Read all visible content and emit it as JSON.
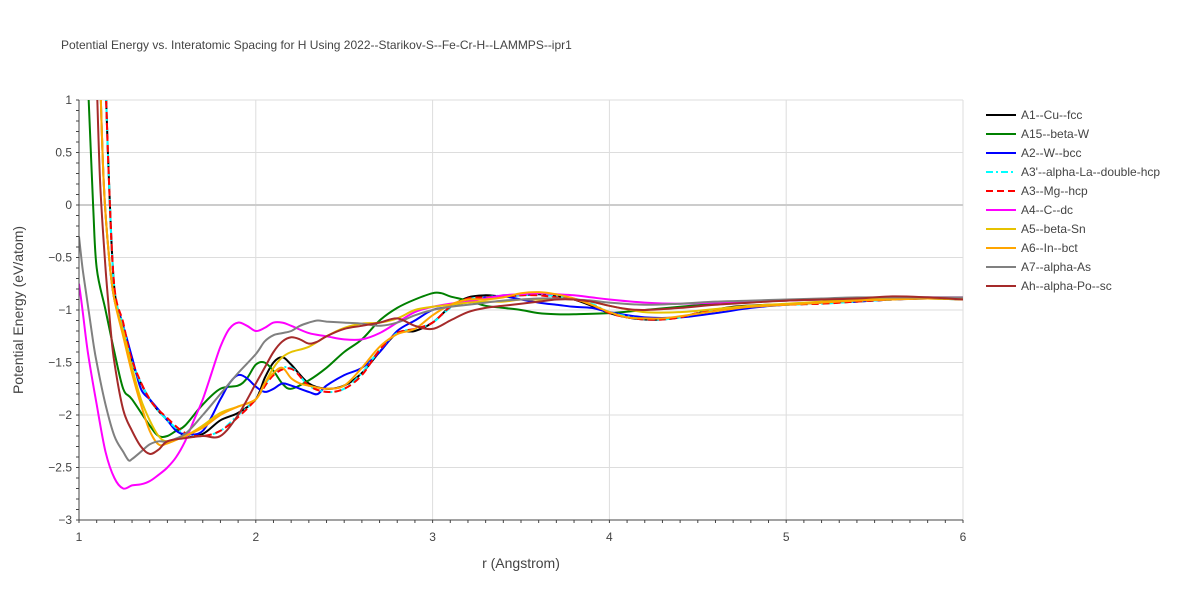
{
  "chart_data": {
    "type": "line",
    "title": "Potential Energy vs. Interatomic Spacing for H Using 2022--Starikov-S--Fe-Cr-H--LAMMPS--ipr1",
    "xlabel": "r (Angstrom)",
    "ylabel": "Potential Energy (eV/atom)",
    "xlim": [
      1,
      6
    ],
    "ylim": [
      -3,
      1
    ],
    "xticks": [
      1,
      2,
      3,
      4,
      5,
      6
    ],
    "yticks": [
      -3,
      -2.5,
      -2,
      -1.5,
      -1,
      -0.5,
      0,
      0.5,
      1
    ],
    "ytick_labels": [
      "−3",
      "−2.5",
      "−2",
      "−1.5",
      "−1",
      "−0.5",
      "0",
      "0.5",
      "1"
    ],
    "grid": true,
    "legend_position": "top-right outside",
    "series": [
      {
        "name": "A1--Cu--fcc",
        "color": "#000000",
        "dash": "solid",
        "x": [
          1.15,
          1.17,
          1.2,
          1.25,
          1.3,
          1.4,
          1.5,
          1.6,
          1.7,
          1.8,
          1.9,
          2.0,
          2.05,
          2.1,
          2.15,
          2.2,
          2.3,
          2.4,
          2.5,
          2.6,
          2.7,
          2.8,
          2.9,
          3.0,
          3.1,
          3.2,
          3.3,
          3.4,
          3.5,
          3.6,
          3.7,
          3.8,
          3.9,
          4.0,
          4.1,
          4.2,
          4.3,
          4.4,
          4.5,
          4.7,
          4.9,
          5.0,
          5.2,
          5.4,
          5.6,
          5.8,
          6.0
        ],
        "y": [
          1.2,
          0.2,
          -0.8,
          -1.15,
          -1.5,
          -1.85,
          -2.05,
          -2.2,
          -2.18,
          -2.05,
          -1.98,
          -1.85,
          -1.65,
          -1.5,
          -1.45,
          -1.52,
          -1.7,
          -1.75,
          -1.72,
          -1.6,
          -1.4,
          -1.22,
          -1.2,
          -1.12,
          -0.97,
          -0.88,
          -0.86,
          -0.87,
          -0.86,
          -0.85,
          -0.87,
          -0.9,
          -0.96,
          -1.03,
          -1.07,
          -1.09,
          -1.09,
          -1.07,
          -1.03,
          -0.97,
          -0.95,
          -0.95,
          -0.93,
          -0.92,
          -0.9,
          -0.89,
          -0.9
        ]
      },
      {
        "name": "A15--beta-W",
        "color": "#008000",
        "dash": "solid",
        "x": [
          1.05,
          1.08,
          1.1,
          1.15,
          1.2,
          1.25,
          1.3,
          1.4,
          1.45,
          1.5,
          1.55,
          1.6,
          1.7,
          1.8,
          1.9,
          1.95,
          2.0,
          2.05,
          2.1,
          2.15,
          2.2,
          2.3,
          2.4,
          2.5,
          2.6,
          2.7,
          2.8,
          2.9,
          3.0,
          3.05,
          3.1,
          3.2,
          3.3,
          3.4,
          3.5,
          3.6,
          3.7,
          3.8,
          4.0,
          4.2,
          4.4,
          4.6,
          4.8,
          5.0,
          5.2,
          5.4,
          5.6,
          5.8,
          6.0
        ],
        "y": [
          1.2,
          0.0,
          -0.6,
          -1.0,
          -1.4,
          -1.75,
          -1.85,
          -2.1,
          -2.2,
          -2.2,
          -2.15,
          -2.1,
          -1.9,
          -1.75,
          -1.72,
          -1.65,
          -1.52,
          -1.5,
          -1.58,
          -1.7,
          -1.75,
          -1.67,
          -1.55,
          -1.4,
          -1.28,
          -1.1,
          -0.98,
          -0.9,
          -0.84,
          -0.84,
          -0.87,
          -0.91,
          -0.96,
          -0.98,
          -1.0,
          -1.03,
          -1.04,
          -1.04,
          -1.03,
          -1.0,
          -0.97,
          -0.94,
          -0.92,
          -0.91,
          -0.9,
          -0.89,
          -0.88,
          -0.88,
          -0.89
        ]
      },
      {
        "name": "A2--W--bcc",
        "color": "#0000ff",
        "dash": "solid",
        "x": [
          1.12,
          1.14,
          1.17,
          1.2,
          1.25,
          1.3,
          1.35,
          1.4,
          1.45,
          1.5,
          1.55,
          1.6,
          1.7,
          1.8,
          1.85,
          1.9,
          1.95,
          2.0,
          2.05,
          2.1,
          2.15,
          2.2,
          2.3,
          2.35,
          2.4,
          2.5,
          2.6,
          2.7,
          2.8,
          2.9,
          3.0,
          3.1,
          3.2,
          3.3,
          3.4,
          3.5,
          3.6,
          3.7,
          3.8,
          3.9,
          4.0,
          4.2,
          4.4,
          4.6,
          4.8,
          5.0,
          5.2,
          5.4,
          5.6,
          5.8,
          6.0
        ],
        "y": [
          1.2,
          0.2,
          -0.5,
          -0.9,
          -1.15,
          -1.45,
          -1.75,
          -1.85,
          -1.95,
          -2.05,
          -2.15,
          -2.18,
          -2.15,
          -1.85,
          -1.7,
          -1.62,
          -1.65,
          -1.73,
          -1.78,
          -1.75,
          -1.7,
          -1.72,
          -1.78,
          -1.8,
          -1.72,
          -1.62,
          -1.55,
          -1.4,
          -1.2,
          -1.1,
          -1.0,
          -0.97,
          -0.92,
          -0.88,
          -0.87,
          -0.9,
          -0.93,
          -0.95,
          -0.97,
          -0.98,
          -1.02,
          -1.07,
          -1.07,
          -1.03,
          -0.98,
          -0.95,
          -0.93,
          -0.92,
          -0.9,
          -0.89,
          -0.89
        ]
      },
      {
        "name": "A3'--alpha-La--double-hcp",
        "color": "#00ffff",
        "dash": "dashdot",
        "x": [
          1.15,
          1.17,
          1.2,
          1.25,
          1.3,
          1.4,
          1.5,
          1.6,
          1.7,
          1.8,
          1.9,
          2.0,
          2.1,
          2.2,
          2.3,
          2.4,
          2.5,
          2.6,
          2.7,
          2.8,
          2.9,
          3.0,
          3.1,
          3.2,
          3.3,
          3.4,
          3.5,
          3.6,
          3.7,
          3.8,
          3.9,
          4.0,
          4.1,
          4.2,
          4.3,
          4.4,
          4.5,
          4.7,
          4.9,
          5.0,
          5.2,
          5.4,
          5.6,
          5.8,
          6.0
        ],
        "y": [
          1.2,
          0.2,
          -0.8,
          -1.15,
          -1.5,
          -1.85,
          -2.05,
          -2.18,
          -2.2,
          -2.15,
          -2.0,
          -1.85,
          -1.6,
          -1.55,
          -1.72,
          -1.78,
          -1.75,
          -1.6,
          -1.38,
          -1.22,
          -1.18,
          -1.12,
          -0.98,
          -0.9,
          -0.88,
          -0.86,
          -0.86,
          -0.85,
          -0.87,
          -0.89,
          -0.94,
          -1.02,
          -1.06,
          -1.09,
          -1.09,
          -1.07,
          -1.03,
          -0.98,
          -0.96,
          -0.95,
          -0.94,
          -0.92,
          -0.9,
          -0.89,
          -0.9
        ]
      },
      {
        "name": "A3--Mg--hcp",
        "color": "#ff0000",
        "dash": "dash",
        "x": [
          1.15,
          1.17,
          1.2,
          1.25,
          1.3,
          1.4,
          1.5,
          1.6,
          1.7,
          1.8,
          1.9,
          2.0,
          2.1,
          2.2,
          2.3,
          2.4,
          2.5,
          2.6,
          2.7,
          2.8,
          2.9,
          3.0,
          3.1,
          3.2,
          3.3,
          3.4,
          3.5,
          3.6,
          3.7,
          3.8,
          3.9,
          4.0,
          4.1,
          4.2,
          4.3,
          4.4,
          4.5,
          4.7,
          4.9,
          5.0,
          5.2,
          5.4,
          5.6,
          5.8,
          6.0
        ],
        "y": [
          1.2,
          0.2,
          -0.78,
          -1.12,
          -1.48,
          -1.85,
          -2.03,
          -2.17,
          -2.2,
          -2.15,
          -2.02,
          -1.85,
          -1.62,
          -1.56,
          -1.72,
          -1.78,
          -1.75,
          -1.62,
          -1.38,
          -1.22,
          -1.18,
          -1.12,
          -0.97,
          -0.89,
          -0.88,
          -0.87,
          -0.86,
          -0.86,
          -0.88,
          -0.9,
          -0.95,
          -1.03,
          -1.07,
          -1.09,
          -1.09,
          -1.07,
          -1.03,
          -0.98,
          -0.96,
          -0.95,
          -0.94,
          -0.92,
          -0.9,
          -0.89,
          -0.9
        ]
      },
      {
        "name": "A4--C--dc",
        "color": "#ff00ff",
        "dash": "solid",
        "x": [
          1.0,
          1.02,
          1.05,
          1.1,
          1.15,
          1.2,
          1.25,
          1.3,
          1.35,
          1.4,
          1.45,
          1.5,
          1.55,
          1.6,
          1.65,
          1.7,
          1.75,
          1.8,
          1.85,
          1.9,
          1.95,
          2.0,
          2.05,
          2.1,
          2.15,
          2.2,
          2.3,
          2.4,
          2.5,
          2.6,
          2.7,
          2.8,
          2.9,
          3.0,
          3.1,
          3.2,
          3.3,
          3.4,
          3.5,
          3.6,
          3.7,
          3.8,
          3.9,
          4.0,
          4.2,
          4.4,
          4.6,
          4.8,
          5.0,
          5.2,
          5.4,
          5.6,
          5.8,
          6.0
        ],
        "y": [
          -0.75,
          -1.0,
          -1.4,
          -1.9,
          -2.35,
          -2.6,
          -2.7,
          -2.67,
          -2.66,
          -2.63,
          -2.57,
          -2.5,
          -2.4,
          -2.25,
          -2.05,
          -1.85,
          -1.6,
          -1.35,
          -1.18,
          -1.12,
          -1.15,
          -1.2,
          -1.17,
          -1.12,
          -1.12,
          -1.15,
          -1.22,
          -1.25,
          -1.28,
          -1.28,
          -1.22,
          -1.12,
          -1.02,
          -0.97,
          -0.94,
          -0.92,
          -0.89,
          -0.86,
          -0.85,
          -0.84,
          -0.85,
          -0.86,
          -0.88,
          -0.9,
          -0.93,
          -0.94,
          -0.93,
          -0.92,
          -0.91,
          -0.9,
          -0.89,
          -0.88,
          -0.88,
          -0.88
        ]
      },
      {
        "name": "A5--beta-Sn",
        "color": "#e6c200",
        "dash": "solid",
        "x": [
          1.12,
          1.14,
          1.17,
          1.2,
          1.25,
          1.3,
          1.35,
          1.4,
          1.45,
          1.5,
          1.6,
          1.7,
          1.8,
          1.9,
          2.0,
          2.05,
          2.1,
          2.15,
          2.2,
          2.3,
          2.4,
          2.5,
          2.6,
          2.7,
          2.8,
          2.9,
          3.0,
          3.1,
          3.2,
          3.3,
          3.4,
          3.5,
          3.6,
          3.7,
          3.8,
          3.9,
          4.0,
          4.2,
          4.4,
          4.6,
          4.8,
          5.0,
          5.2,
          5.4,
          5.6,
          5.8,
          6.0
        ],
        "y": [
          1.2,
          0.2,
          -0.5,
          -0.9,
          -1.2,
          -1.55,
          -1.85,
          -2.05,
          -2.2,
          -2.25,
          -2.2,
          -2.1,
          -1.98,
          -1.92,
          -1.85,
          -1.7,
          -1.55,
          -1.45,
          -1.4,
          -1.35,
          -1.25,
          -1.17,
          -1.13,
          -1.12,
          -1.08,
          -1.0,
          -0.97,
          -0.95,
          -0.93,
          -0.92,
          -0.92,
          -0.9,
          -0.9,
          -0.89,
          -0.9,
          -0.92,
          -0.96,
          -1.02,
          -1.02,
          -0.99,
          -0.96,
          -0.94,
          -0.92,
          -0.9,
          -0.89,
          -0.89,
          -0.9
        ]
      },
      {
        "name": "A6--In--bct",
        "color": "#ffa500",
        "dash": "solid",
        "x": [
          1.12,
          1.14,
          1.17,
          1.2,
          1.25,
          1.3,
          1.35,
          1.4,
          1.45,
          1.5,
          1.6,
          1.7,
          1.8,
          1.9,
          2.0,
          2.05,
          2.1,
          2.15,
          2.2,
          2.25,
          2.3,
          2.4,
          2.5,
          2.6,
          2.7,
          2.8,
          2.9,
          3.0,
          3.1,
          3.2,
          3.3,
          3.4,
          3.5,
          3.6,
          3.7,
          3.8,
          3.9,
          4.0,
          4.1,
          4.2,
          4.3,
          4.4,
          4.6,
          4.8,
          5.0,
          5.2,
          5.4,
          5.6,
          5.8,
          6.0
        ],
        "y": [
          1.2,
          0.2,
          -0.5,
          -0.9,
          -1.25,
          -1.6,
          -1.9,
          -2.15,
          -2.28,
          -2.27,
          -2.2,
          -2.12,
          -2.0,
          -1.92,
          -1.85,
          -1.7,
          -1.6,
          -1.55,
          -1.65,
          -1.7,
          -1.72,
          -1.75,
          -1.72,
          -1.55,
          -1.35,
          -1.23,
          -1.18,
          -1.05,
          -0.95,
          -0.9,
          -0.9,
          -0.88,
          -0.84,
          -0.83,
          -0.85,
          -0.89,
          -0.95,
          -1.02,
          -1.07,
          -1.08,
          -1.08,
          -1.06,
          -1.01,
          -0.97,
          -0.95,
          -0.93,
          -0.91,
          -0.9,
          -0.89,
          -0.89
        ]
      },
      {
        "name": "A7--alpha-As",
        "color": "#808080",
        "dash": "solid",
        "x": [
          1.0,
          1.02,
          1.05,
          1.08,
          1.1,
          1.15,
          1.2,
          1.25,
          1.28,
          1.3,
          1.35,
          1.4,
          1.45,
          1.5,
          1.6,
          1.7,
          1.8,
          1.9,
          2.0,
          2.05,
          2.1,
          2.15,
          2.2,
          2.25,
          2.3,
          2.35,
          2.4,
          2.5,
          2.6,
          2.7,
          2.8,
          2.9,
          3.0,
          3.1,
          3.2,
          3.3,
          3.4,
          3.5,
          3.6,
          3.7,
          3.8,
          3.9,
          4.0,
          4.2,
          4.4,
          4.6,
          4.8,
          5.0,
          5.2,
          5.4,
          5.6,
          5.8,
          6.0
        ],
        "y": [
          -0.3,
          -0.6,
          -0.95,
          -1.3,
          -1.5,
          -1.9,
          -2.2,
          -2.35,
          -2.43,
          -2.42,
          -2.35,
          -2.28,
          -2.25,
          -2.25,
          -2.18,
          -2.0,
          -1.8,
          -1.6,
          -1.42,
          -1.3,
          -1.24,
          -1.22,
          -1.2,
          -1.15,
          -1.12,
          -1.1,
          -1.11,
          -1.12,
          -1.13,
          -1.15,
          -1.12,
          -1.05,
          -1.0,
          -0.97,
          -0.95,
          -0.93,
          -0.91,
          -0.9,
          -0.89,
          -0.89,
          -0.9,
          -0.91,
          -0.93,
          -0.95,
          -0.94,
          -0.92,
          -0.91,
          -0.9,
          -0.89,
          -0.88,
          -0.88,
          -0.88,
          -0.88
        ]
      },
      {
        "name": "Ah--alpha-Po--sc",
        "color": "#a52a2a",
        "dash": "solid",
        "x": [
          1.1,
          1.12,
          1.15,
          1.18,
          1.2,
          1.25,
          1.3,
          1.35,
          1.4,
          1.45,
          1.5,
          1.6,
          1.7,
          1.8,
          1.9,
          2.0,
          2.05,
          2.1,
          2.15,
          2.2,
          2.25,
          2.3,
          2.35,
          2.4,
          2.5,
          2.6,
          2.7,
          2.8,
          2.9,
          3.0,
          3.1,
          3.2,
          3.3,
          3.4,
          3.5,
          3.6,
          3.7,
          3.8,
          3.9,
          4.0,
          4.1,
          4.2,
          4.4,
          4.6,
          4.8,
          5.0,
          5.2,
          5.4,
          5.6,
          5.8,
          6.0
        ],
        "y": [
          1.2,
          0.2,
          -0.6,
          -1.2,
          -1.5,
          -1.95,
          -2.15,
          -2.3,
          -2.37,
          -2.33,
          -2.25,
          -2.22,
          -2.2,
          -2.2,
          -2.0,
          -1.7,
          -1.55,
          -1.4,
          -1.3,
          -1.26,
          -1.28,
          -1.32,
          -1.3,
          -1.25,
          -1.18,
          -1.15,
          -1.12,
          -1.08,
          -1.15,
          -1.18,
          -1.1,
          -1.02,
          -0.98,
          -0.96,
          -0.94,
          -0.92,
          -0.9,
          -0.9,
          -0.92,
          -0.96,
          -0.99,
          -1.0,
          -0.98,
          -0.95,
          -0.93,
          -0.91,
          -0.9,
          -0.89,
          -0.87,
          -0.88,
          -0.9
        ]
      }
    ]
  }
}
